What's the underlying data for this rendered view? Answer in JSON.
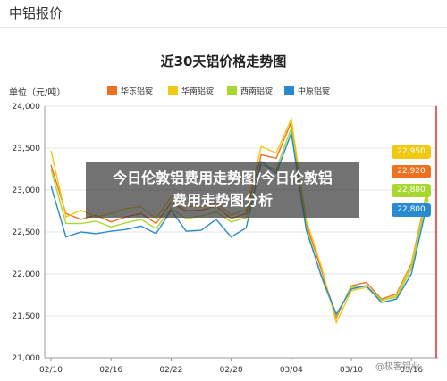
{
  "header": {
    "title": "中铝报价"
  },
  "chart_data": {
    "type": "line",
    "title": "近30天铝价格走势图",
    "unit_label": "单位（元/吨）",
    "ylim": [
      21000,
      24000
    ],
    "y_ticks": [
      "24,000",
      "23,500",
      "23,000",
      "22,500",
      "22,000",
      "21,500",
      "21,000"
    ],
    "x_tick_labels": [
      "02/10",
      "02/16",
      "02/22",
      "02/28",
      "03/04",
      "03/10",
      "03/16"
    ],
    "x": [
      "02/10",
      "02/11",
      "02/14",
      "02/15",
      "02/16",
      "02/17",
      "02/18",
      "02/21",
      "02/22",
      "02/23",
      "02/24",
      "02/25",
      "02/28",
      "03/01",
      "03/02",
      "03/03",
      "03/04",
      "03/07",
      "03/08",
      "03/09",
      "03/10",
      "03/11",
      "03/14",
      "03/15",
      "03/16",
      "03/17"
    ],
    "series": [
      {
        "name": "华东铝锭",
        "color": "#f07020",
        "values": [
          23300,
          22720,
          22650,
          22700,
          22620,
          22680,
          22720,
          22600,
          22850,
          22750,
          22760,
          22810,
          22660,
          22720,
          23420,
          23380,
          23810,
          22600,
          22050,
          21480,
          21860,
          21900,
          21700,
          21760,
          22120,
          22950
        ]
      },
      {
        "name": "华南铝锭",
        "color": "#f2c811",
        "values": [
          23470,
          22680,
          22760,
          22680,
          22720,
          22780,
          22800,
          22660,
          22920,
          22810,
          22800,
          22850,
          22700,
          22770,
          23520,
          23440,
          23850,
          22640,
          22090,
          21420,
          21800,
          21840,
          21680,
          21740,
          22100,
          22920
        ]
      },
      {
        "name": "西南铝锭",
        "color": "#a8d830",
        "values": [
          23250,
          22600,
          22600,
          22630,
          22560,
          22610,
          22650,
          22540,
          22780,
          22660,
          22690,
          22740,
          22620,
          22670,
          23300,
          23250,
          23740,
          22560,
          21960,
          21500,
          21840,
          21860,
          21690,
          21720,
          22060,
          22880
        ]
      },
      {
        "name": "中原铝锭",
        "color": "#2a8ad0",
        "values": [
          23050,
          22440,
          22500,
          22480,
          22510,
          22530,
          22570,
          22480,
          22760,
          22510,
          22520,
          22650,
          22440,
          22550,
          23340,
          23200,
          23680,
          22520,
          21980,
          21520,
          21820,
          21860,
          21660,
          21700,
          22000,
          22800
        ]
      }
    ],
    "end_labels": [
      "22,950",
      "22,920",
      "22,880",
      "22,800"
    ]
  },
  "overlay": {
    "line1": "今日伦敦铝费用走势图/今日伦敦铝",
    "line2": "费用走势图分析"
  },
  "watermark": "@极客铝业"
}
